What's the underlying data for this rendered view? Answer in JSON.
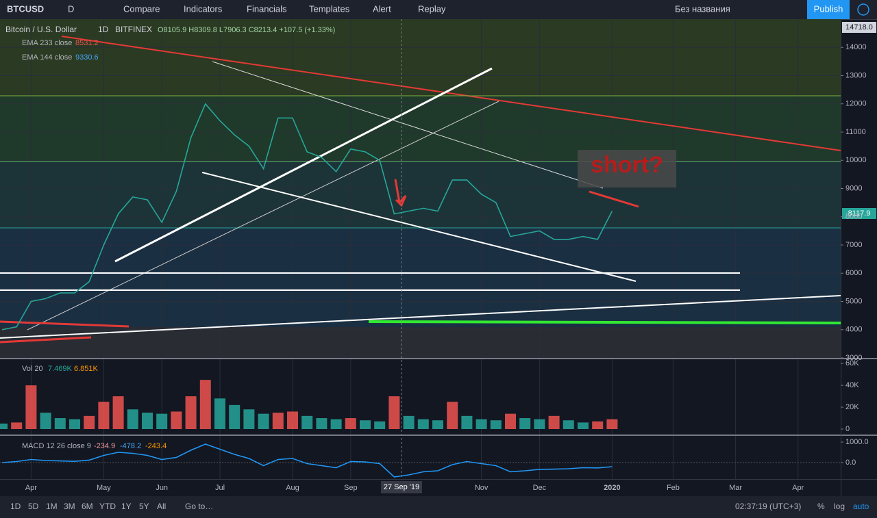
{
  "toolbar": {
    "symbol": "BTCUSD",
    "interval": "D",
    "items": [
      "Compare",
      "Indicators",
      "Financials",
      "Templates",
      "Alert",
      "Replay"
    ],
    "layout_name": "Без названия",
    "publish": "Publish"
  },
  "legend": {
    "title": "Bitcoin / U.S. Dollar",
    "interval": "1D",
    "exchange": "BITFINEX",
    "ohlc": "O8105.9 H8309.8 L7906.3 C8213.4 +107.5 (+1.33%)",
    "indicators": [
      {
        "name": "EMA 233 close",
        "value": "8531.2"
      },
      {
        "name": "EMA 144 close",
        "value": "9330.6"
      }
    ]
  },
  "annotation": "short?",
  "price_labels": {
    "high": "14718.0",
    "last": "8117.9"
  },
  "crosshair_date": "27 Sep '19",
  "future_months": [
    "Feb",
    "Mar",
    "Apr"
  ],
  "volume_legend": {
    "name": "Vol 20",
    "value": "7.469K",
    "ma": "6.851K"
  },
  "macd_legend": {
    "name": "MACD 12 26 close 9",
    "hist": "-234.9",
    "macd": "-478.2",
    "signal": "-243.4"
  },
  "bottom_bar": {
    "ranges": [
      "1D",
      "5D",
      "1M",
      "3M",
      "6M",
      "YTD",
      "1Y",
      "5Y",
      "All"
    ],
    "goto": "Go to…",
    "clock": "02:37:19 (UTC+3)",
    "options": [
      "%",
      "log",
      "auto"
    ]
  },
  "chart_data": [
    {
      "type": "line",
      "categories": [
        null,
        null,
        "Apr",
        null,
        null,
        null,
        null,
        "May",
        null,
        null,
        null,
        "Jun",
        null,
        null,
        null,
        "Jul",
        null,
        null,
        null,
        null,
        "Aug",
        null,
        null,
        null,
        "Sep",
        null,
        null,
        null,
        null,
        null,
        null,
        null,
        null,
        "Nov",
        null,
        null,
        null,
        "Dec",
        null,
        null,
        null,
        null,
        "2020"
      ],
      "values": [
        4000,
        4100,
        5000,
        5100,
        5300,
        5300,
        5700,
        7000,
        8100,
        8700,
        8600,
        7800,
        8900,
        10800,
        12000,
        11400,
        10900,
        10500,
        9700,
        11500,
        11500,
        10300,
        10100,
        9600,
        10400,
        10300,
        10000,
        8100,
        8200,
        8300,
        8200,
        9300,
        9300,
        8800,
        8500,
        7300,
        7400,
        7500,
        7200,
        7200,
        7300,
        7200,
        8200
      ],
      "color": "#26a69a",
      "ylim": [
        3000,
        15000
      ],
      "yticks": [
        3000,
        4000,
        5000,
        6000,
        7000,
        8000,
        9000,
        10000,
        11000,
        12000,
        13000,
        14000
      ],
      "grid": true
    },
    {
      "type": "bar",
      "values": [
        5000,
        6000,
        40000,
        15000,
        10000,
        9000,
        12000,
        25000,
        30000,
        18000,
        15000,
        14000,
        16000,
        30000,
        45000,
        28000,
        22000,
        18000,
        14000,
        15000,
        16000,
        12000,
        10000,
        9000,
        10000,
        8000,
        7000,
        30000,
        12000,
        9000,
        8000,
        25000,
        12000,
        9000,
        8000,
        14000,
        10000,
        9000,
        12000,
        8000,
        6000,
        7000,
        9000
      ],
      "colors": [
        "#26a69a",
        "#ef5350"
      ],
      "ylim": [
        0,
        62000
      ],
      "yticks": [
        {
          "value": 0,
          "label": "0"
        },
        {
          "value": 20000,
          "label": "20K"
        },
        {
          "value": 40000,
          "label": "40K"
        },
        {
          "value": 60000,
          "label": "60K"
        }
      ]
    },
    {
      "type": "line",
      "values": [
        0,
        50,
        150,
        100,
        80,
        60,
        120,
        350,
        500,
        450,
        350,
        150,
        250,
        600,
        900,
        650,
        400,
        200,
        -150,
        150,
        200,
        -50,
        -150,
        -250,
        50,
        30,
        -50,
        -700,
        -600,
        -450,
        -400,
        -100,
        50,
        -50,
        -150,
        -450,
        -400,
        -330,
        -320,
        -300,
        -250,
        -260,
        -200
      ],
      "color": "#2196f3",
      "ylim": [
        -800,
        1200
      ],
      "yticks": [
        {
          "value": 0,
          "label": "0.0"
        },
        {
          "value": 1000,
          "label": "1000.0"
        }
      ]
    }
  ]
}
